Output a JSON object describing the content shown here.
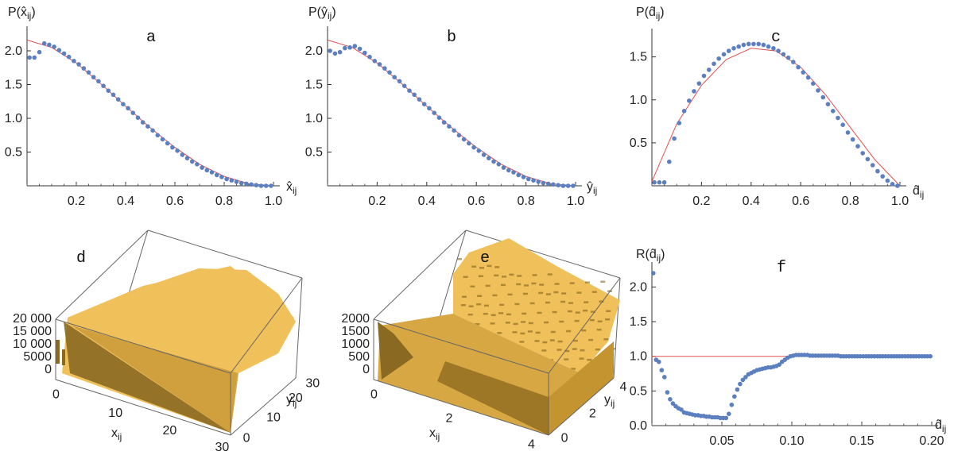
{
  "chart_data": [
    {
      "panel": "a",
      "type": "scatter",
      "ylabel": "P(x̂ij)",
      "xlabel": "x̂ij",
      "xlim": [
        0,
        1
      ],
      "ylim": [
        0,
        2.2
      ],
      "xticks": [
        "0.2",
        "0.4",
        "0.6",
        "0.8",
        "1.0"
      ],
      "yticks": [
        "0.5",
        "1.0",
        "1.5",
        "2.0"
      ],
      "series": [
        {
          "kind": "points",
          "x": [
            0.01,
            0.03,
            0.05,
            0.07,
            0.09,
            0.11,
            0.13,
            0.15,
            0.17,
            0.19,
            0.21,
            0.23,
            0.25,
            0.27,
            0.29,
            0.31,
            0.33,
            0.35,
            0.37,
            0.39,
            0.41,
            0.43,
            0.45,
            0.47,
            0.49,
            0.51,
            0.53,
            0.55,
            0.57,
            0.59,
            0.61,
            0.63,
            0.65,
            0.67,
            0.69,
            0.71,
            0.73,
            0.75,
            0.77,
            0.79,
            0.81,
            0.83,
            0.85,
            0.87,
            0.89,
            0.91,
            0.93,
            0.95,
            0.97,
            0.99
          ],
          "y": [
            1.9,
            1.9,
            1.98,
            2.11,
            2.09,
            2.06,
            2.01,
            1.96,
            1.91,
            1.85,
            1.8,
            1.74,
            1.68,
            1.61,
            1.55,
            1.48,
            1.41,
            1.35,
            1.28,
            1.21,
            1.15,
            1.08,
            1.01,
            0.94,
            0.88,
            0.82,
            0.75,
            0.69,
            0.63,
            0.57,
            0.52,
            0.46,
            0.41,
            0.36,
            0.32,
            0.27,
            0.23,
            0.2,
            0.16,
            0.13,
            0.1,
            0.08,
            0.06,
            0.04,
            0.03,
            0.02,
            0.01,
            0.0,
            0.0,
            0.0
          ]
        },
        {
          "kind": "line",
          "x": [
            0,
            0.1,
            0.2,
            0.3,
            0.4,
            0.5,
            0.6,
            0.7,
            0.8,
            0.9,
            1.0
          ],
          "y": [
            2.16,
            2.05,
            1.82,
            1.51,
            1.18,
            0.86,
            0.57,
            0.32,
            0.14,
            0.03,
            0.0
          ]
        }
      ]
    },
    {
      "panel": "b",
      "type": "scatter",
      "ylabel": "P(ŷij)",
      "xlabel": "ŷij",
      "xlim": [
        0,
        1
      ],
      "ylim": [
        0,
        2.2
      ],
      "xticks": [
        "0.2",
        "0.4",
        "0.6",
        "0.8",
        "1.0"
      ],
      "yticks": [
        "0.5",
        "1.0",
        "1.5",
        "2.0"
      ],
      "series": [
        {
          "kind": "points",
          "x": [
            0.01,
            0.03,
            0.05,
            0.07,
            0.09,
            0.11,
            0.13,
            0.15,
            0.17,
            0.19,
            0.21,
            0.23,
            0.25,
            0.27,
            0.29,
            0.31,
            0.33,
            0.35,
            0.37,
            0.39,
            0.41,
            0.43,
            0.45,
            0.47,
            0.49,
            0.51,
            0.53,
            0.55,
            0.57,
            0.59,
            0.61,
            0.63,
            0.65,
            0.67,
            0.69,
            0.71,
            0.73,
            0.75,
            0.77,
            0.79,
            0.81,
            0.83,
            0.85,
            0.87,
            0.89,
            0.91,
            0.93,
            0.95,
            0.97,
            0.99
          ],
          "y": [
            2.0,
            1.96,
            1.98,
            2.04,
            2.05,
            2.07,
            2.03,
            1.97,
            1.91,
            1.85,
            1.8,
            1.74,
            1.68,
            1.61,
            1.55,
            1.48,
            1.41,
            1.35,
            1.28,
            1.21,
            1.15,
            1.08,
            1.01,
            0.94,
            0.88,
            0.82,
            0.75,
            0.69,
            0.63,
            0.57,
            0.52,
            0.46,
            0.41,
            0.36,
            0.32,
            0.27,
            0.23,
            0.2,
            0.16,
            0.13,
            0.1,
            0.08,
            0.06,
            0.04,
            0.03,
            0.02,
            0.01,
            0.0,
            0.0,
            0.0
          ]
        },
        {
          "kind": "line",
          "x": [
            0,
            0.1,
            0.2,
            0.3,
            0.4,
            0.5,
            0.6,
            0.7,
            0.8,
            0.9,
            1.0
          ],
          "y": [
            2.16,
            2.05,
            1.82,
            1.51,
            1.18,
            0.86,
            0.57,
            0.32,
            0.14,
            0.03,
            0.0
          ]
        }
      ]
    },
    {
      "panel": "c",
      "type": "scatter",
      "ylabel": "P(d̂ij)",
      "xlabel": "d̂ij",
      "xlim": [
        0,
        1
      ],
      "ylim": [
        0,
        1.7
      ],
      "xticks": [
        "0.2",
        "0.4",
        "0.6",
        "0.8",
        "1.0"
      ],
      "yticks": [
        "0.5",
        "1.0",
        "1.5"
      ],
      "series": [
        {
          "kind": "points",
          "x": [
            0.01,
            0.03,
            0.05,
            0.07,
            0.09,
            0.11,
            0.13,
            0.15,
            0.17,
            0.19,
            0.21,
            0.23,
            0.25,
            0.27,
            0.29,
            0.31,
            0.33,
            0.35,
            0.37,
            0.39,
            0.41,
            0.43,
            0.45,
            0.47,
            0.49,
            0.51,
            0.53,
            0.55,
            0.57,
            0.59,
            0.61,
            0.63,
            0.65,
            0.67,
            0.69,
            0.71,
            0.73,
            0.75,
            0.77,
            0.79,
            0.81,
            0.83,
            0.85,
            0.87,
            0.89,
            0.91,
            0.93,
            0.95,
            0.97,
            0.99
          ],
          "y": [
            0.04,
            0.04,
            0.04,
            0.28,
            0.55,
            0.73,
            0.87,
            0.99,
            1.1,
            1.19,
            1.28,
            1.35,
            1.42,
            1.48,
            1.53,
            1.57,
            1.6,
            1.62,
            1.64,
            1.65,
            1.65,
            1.65,
            1.64,
            1.62,
            1.6,
            1.57,
            1.53,
            1.49,
            1.44,
            1.38,
            1.32,
            1.26,
            1.19,
            1.11,
            1.03,
            0.95,
            0.87,
            0.79,
            0.71,
            0.62,
            0.54,
            0.46,
            0.38,
            0.31,
            0.24,
            0.17,
            0.11,
            0.06,
            0.02,
            0.0
          ]
        },
        {
          "kind": "line",
          "x": [
            0.0,
            0.1,
            0.2,
            0.3,
            0.4,
            0.5,
            0.6,
            0.7,
            0.8,
            0.9,
            1.0
          ],
          "y": [
            0.05,
            0.72,
            1.17,
            1.47,
            1.6,
            1.57,
            1.38,
            1.06,
            0.68,
            0.3,
            0.0
          ]
        }
      ]
    },
    {
      "panel": "d",
      "type": "3d-histogram",
      "xlabel": "xij",
      "ylabel": "yij",
      "xticks": [
        "0",
        "10",
        "20",
        "30"
      ],
      "yticks": [
        "0",
        "10",
        "20",
        "30"
      ],
      "zticks": [
        "0",
        "5000",
        "10 000",
        "15 000",
        "20 000"
      ]
    },
    {
      "panel": "e",
      "type": "3d-histogram",
      "xlabel": "xij",
      "ylabel": "yij",
      "xticks": [
        "0",
        "2",
        "4"
      ],
      "yticks": [
        "0",
        "2",
        "4"
      ],
      "zticks": [
        "0",
        "500",
        "1000",
        "1500",
        "2000"
      ]
    },
    {
      "panel": "f",
      "type": "scatter",
      "ylabel": "R(d̂ij)",
      "xlabel": "d̂ij",
      "xlim": [
        0,
        0.2
      ],
      "ylim": [
        0,
        2.2
      ],
      "xticks": [
        "0.05",
        "0.10",
        "0.15",
        "0.20"
      ],
      "yticks": [
        "0.0",
        "0.5",
        "1.0",
        "1.5",
        "2.0"
      ],
      "series": [
        {
          "kind": "points",
          "x": [
            0.001,
            0.003,
            0.005,
            0.007,
            0.009,
            0.011,
            0.013,
            0.015,
            0.017,
            0.019,
            0.021,
            0.023,
            0.025,
            0.027,
            0.029,
            0.031,
            0.033,
            0.035,
            0.037,
            0.039,
            0.041,
            0.043,
            0.045,
            0.047,
            0.049,
            0.051,
            0.053,
            0.055,
            0.057,
            0.059,
            0.061,
            0.063,
            0.065,
            0.067,
            0.069,
            0.071,
            0.073,
            0.075,
            0.077,
            0.079,
            0.081,
            0.083,
            0.085,
            0.087,
            0.089,
            0.091,
            0.093,
            0.095,
            0.097,
            0.099,
            0.101,
            0.103,
            0.105,
            0.107,
            0.109,
            0.111,
            0.113,
            0.115,
            0.117,
            0.119,
            0.121,
            0.123,
            0.125,
            0.127,
            0.129,
            0.131,
            0.133,
            0.135,
            0.137,
            0.139,
            0.141,
            0.143,
            0.145,
            0.147,
            0.149,
            0.151,
            0.153,
            0.155,
            0.157,
            0.159,
            0.161,
            0.163,
            0.165,
            0.167,
            0.169,
            0.171,
            0.173,
            0.175,
            0.177,
            0.179,
            0.181,
            0.183,
            0.185,
            0.187,
            0.189,
            0.191,
            0.193,
            0.195,
            0.197,
            0.199
          ],
          "y": [
            2.2,
            0.95,
            0.92,
            0.8,
            0.7,
            0.48,
            0.38,
            0.32,
            0.28,
            0.25,
            0.23,
            0.19,
            0.18,
            0.17,
            0.16,
            0.15,
            0.15,
            0.14,
            0.14,
            0.13,
            0.13,
            0.12,
            0.12,
            0.12,
            0.11,
            0.11,
            0.11,
            0.17,
            0.3,
            0.42,
            0.52,
            0.6,
            0.66,
            0.7,
            0.74,
            0.76,
            0.78,
            0.8,
            0.81,
            0.82,
            0.83,
            0.84,
            0.84,
            0.85,
            0.86,
            0.88,
            0.92,
            0.95,
            0.98,
            1.0,
            1.01,
            1.02,
            1.02,
            1.02,
            1.02,
            1.02,
            1.01,
            1.01,
            1.01,
            1.01,
            1.01,
            1.01,
            1.01,
            1.01,
            1.01,
            1.01,
            1.01,
            1.0,
            1.0,
            1.0,
            1.0,
            1.0,
            1.0,
            1.0,
            1.0,
            1.0,
            1.0,
            1.0,
            1.0,
            1.0,
            1.0,
            1.0,
            1.0,
            1.0,
            1.0,
            1.0,
            1.0,
            1.0,
            1.0,
            1.0,
            1.0,
            1.0,
            1.0,
            1.0,
            1.0,
            1.0,
            1.0,
            1.0,
            1.0,
            1.0
          ]
        },
        {
          "kind": "line",
          "x": [
            0.0,
            0.2
          ],
          "y": [
            1.0,
            1.0
          ]
        }
      ]
    }
  ],
  "colors": {
    "points": "#5b7fbf",
    "line": "#e05050",
    "bars": "#f0c05a",
    "bars_dark": "#8a6a22",
    "box": "#666666"
  }
}
